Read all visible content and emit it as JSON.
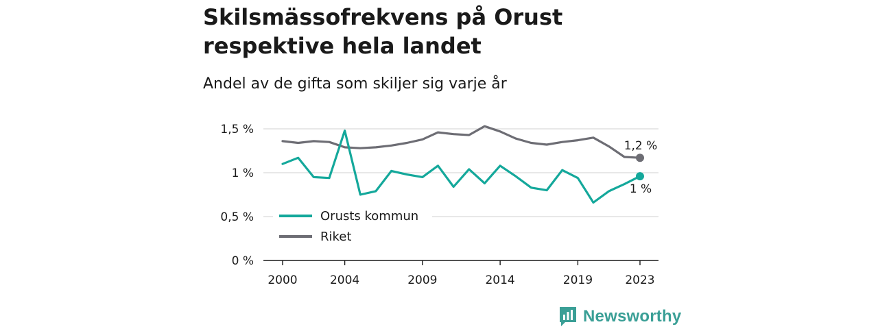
{
  "title": "Skilsmässofrekvens på Orust respektive hela landet",
  "subtitle": "Andel av de gifta som skiljer sig varje år",
  "brand": {
    "name": "Newsworthy",
    "icon": "newsworthy-logo-icon",
    "color": "#3a9f96"
  },
  "chart_data": {
    "type": "line",
    "x": [
      2000,
      2001,
      2002,
      2003,
      2004,
      2005,
      2006,
      2007,
      2008,
      2009,
      2010,
      2011,
      2012,
      2013,
      2014,
      2015,
      2016,
      2017,
      2018,
      2019,
      2020,
      2021,
      2022,
      2023
    ],
    "x_ticks": [
      "2000",
      "2004",
      "2009",
      "2014",
      "2019",
      "2023"
    ],
    "y_ticks": [
      "0 %",
      "0,5 %",
      "1 %",
      "1,5 %"
    ],
    "ylim": [
      0,
      1.5
    ],
    "grid": true,
    "legend_position": "bottom-left",
    "series": [
      {
        "name": "Orusts kommun",
        "color": "#14a89b",
        "values": [
          1.1,
          1.17,
          0.95,
          0.94,
          1.48,
          0.75,
          0.79,
          1.02,
          0.98,
          0.95,
          1.08,
          0.84,
          1.04,
          0.88,
          1.08,
          0.96,
          0.83,
          0.8,
          1.03,
          0.94,
          0.66,
          0.79,
          0.87,
          0.96
        ],
        "end_label": "1 %"
      },
      {
        "name": "Riket",
        "color": "#6d6d74",
        "values": [
          1.36,
          1.34,
          1.36,
          1.35,
          1.29,
          1.28,
          1.29,
          1.31,
          1.34,
          1.38,
          1.46,
          1.44,
          1.43,
          1.53,
          1.47,
          1.39,
          1.34,
          1.32,
          1.35,
          1.37,
          1.4,
          1.3,
          1.18,
          1.17
        ],
        "end_label": "1,2 %"
      }
    ]
  }
}
